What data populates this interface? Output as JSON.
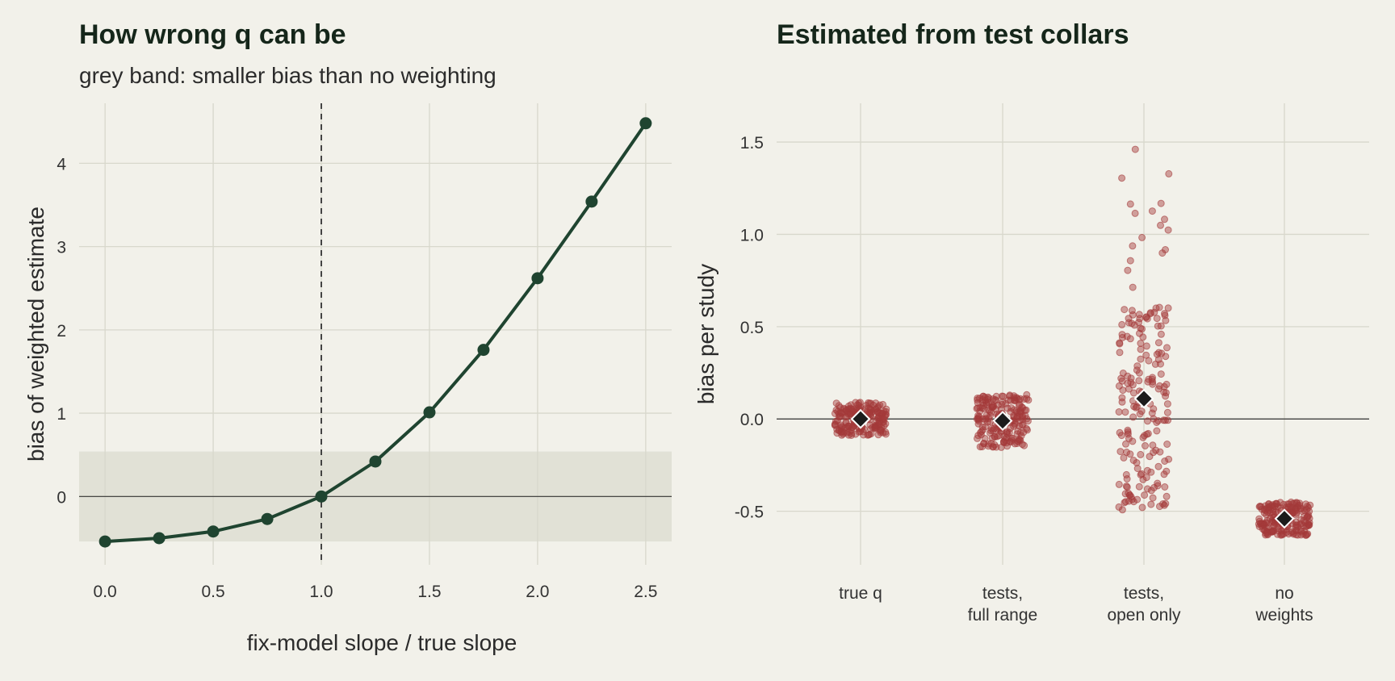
{
  "colors": {
    "background": "#f2f1ea",
    "band": "#e1e1d6",
    "grid": "#d8d8cc",
    "line": "#1f4430",
    "points": "#a33a3a",
    "marker": "#1c1c1c"
  },
  "chart_data": [
    {
      "type": "line",
      "title": "How wrong q can be",
      "subtitle": "grey band: smaller bias than no weighting",
      "xlabel": "fix-model slope / true slope",
      "ylabel": "bias of weighted estimate",
      "xlim": [
        -0.12,
        2.62
      ],
      "ylim": [
        -0.82,
        4.72
      ],
      "x_ticks": [
        "0.0",
        "0.5",
        "1.0",
        "1.5",
        "2.0",
        "2.5"
      ],
      "y_ticks": [
        "0",
        "1",
        "2",
        "3",
        "4"
      ],
      "grid": true,
      "band": [
        -0.54,
        0.54
      ],
      "reference_vline": 1.0,
      "reference_hline": 0,
      "series": [
        {
          "x": [
            0.0,
            0.25,
            0.5,
            0.75,
            1.0,
            1.25,
            1.5,
            1.75,
            2.0,
            2.25,
            2.5
          ],
          "y": [
            -0.54,
            -0.5,
            -0.42,
            -0.27,
            0.0,
            0.42,
            1.01,
            1.76,
            2.62,
            3.54,
            4.48
          ]
        }
      ]
    },
    {
      "type": "scatter",
      "title": "Estimated from test collars",
      "xlabel": "",
      "ylabel": "bias per study",
      "ylim": [
        -0.79,
        1.71
      ],
      "y_ticks": [
        "-0.5",
        "0.0",
        "0.5",
        "1.0",
        "1.5"
      ],
      "grid": true,
      "reference_hline": 0,
      "categories": [
        [
          "true q"
        ],
        [
          "tests,",
          "full range"
        ],
        [
          "tests,",
          "open only"
        ],
        [
          "no",
          "weights"
        ]
      ],
      "means": [
        0.0,
        -0.01,
        0.11,
        -0.54
      ],
      "spreads": [
        0.05,
        0.09,
        0.4,
        0.05
      ],
      "points_per_group": 200
    }
  ]
}
